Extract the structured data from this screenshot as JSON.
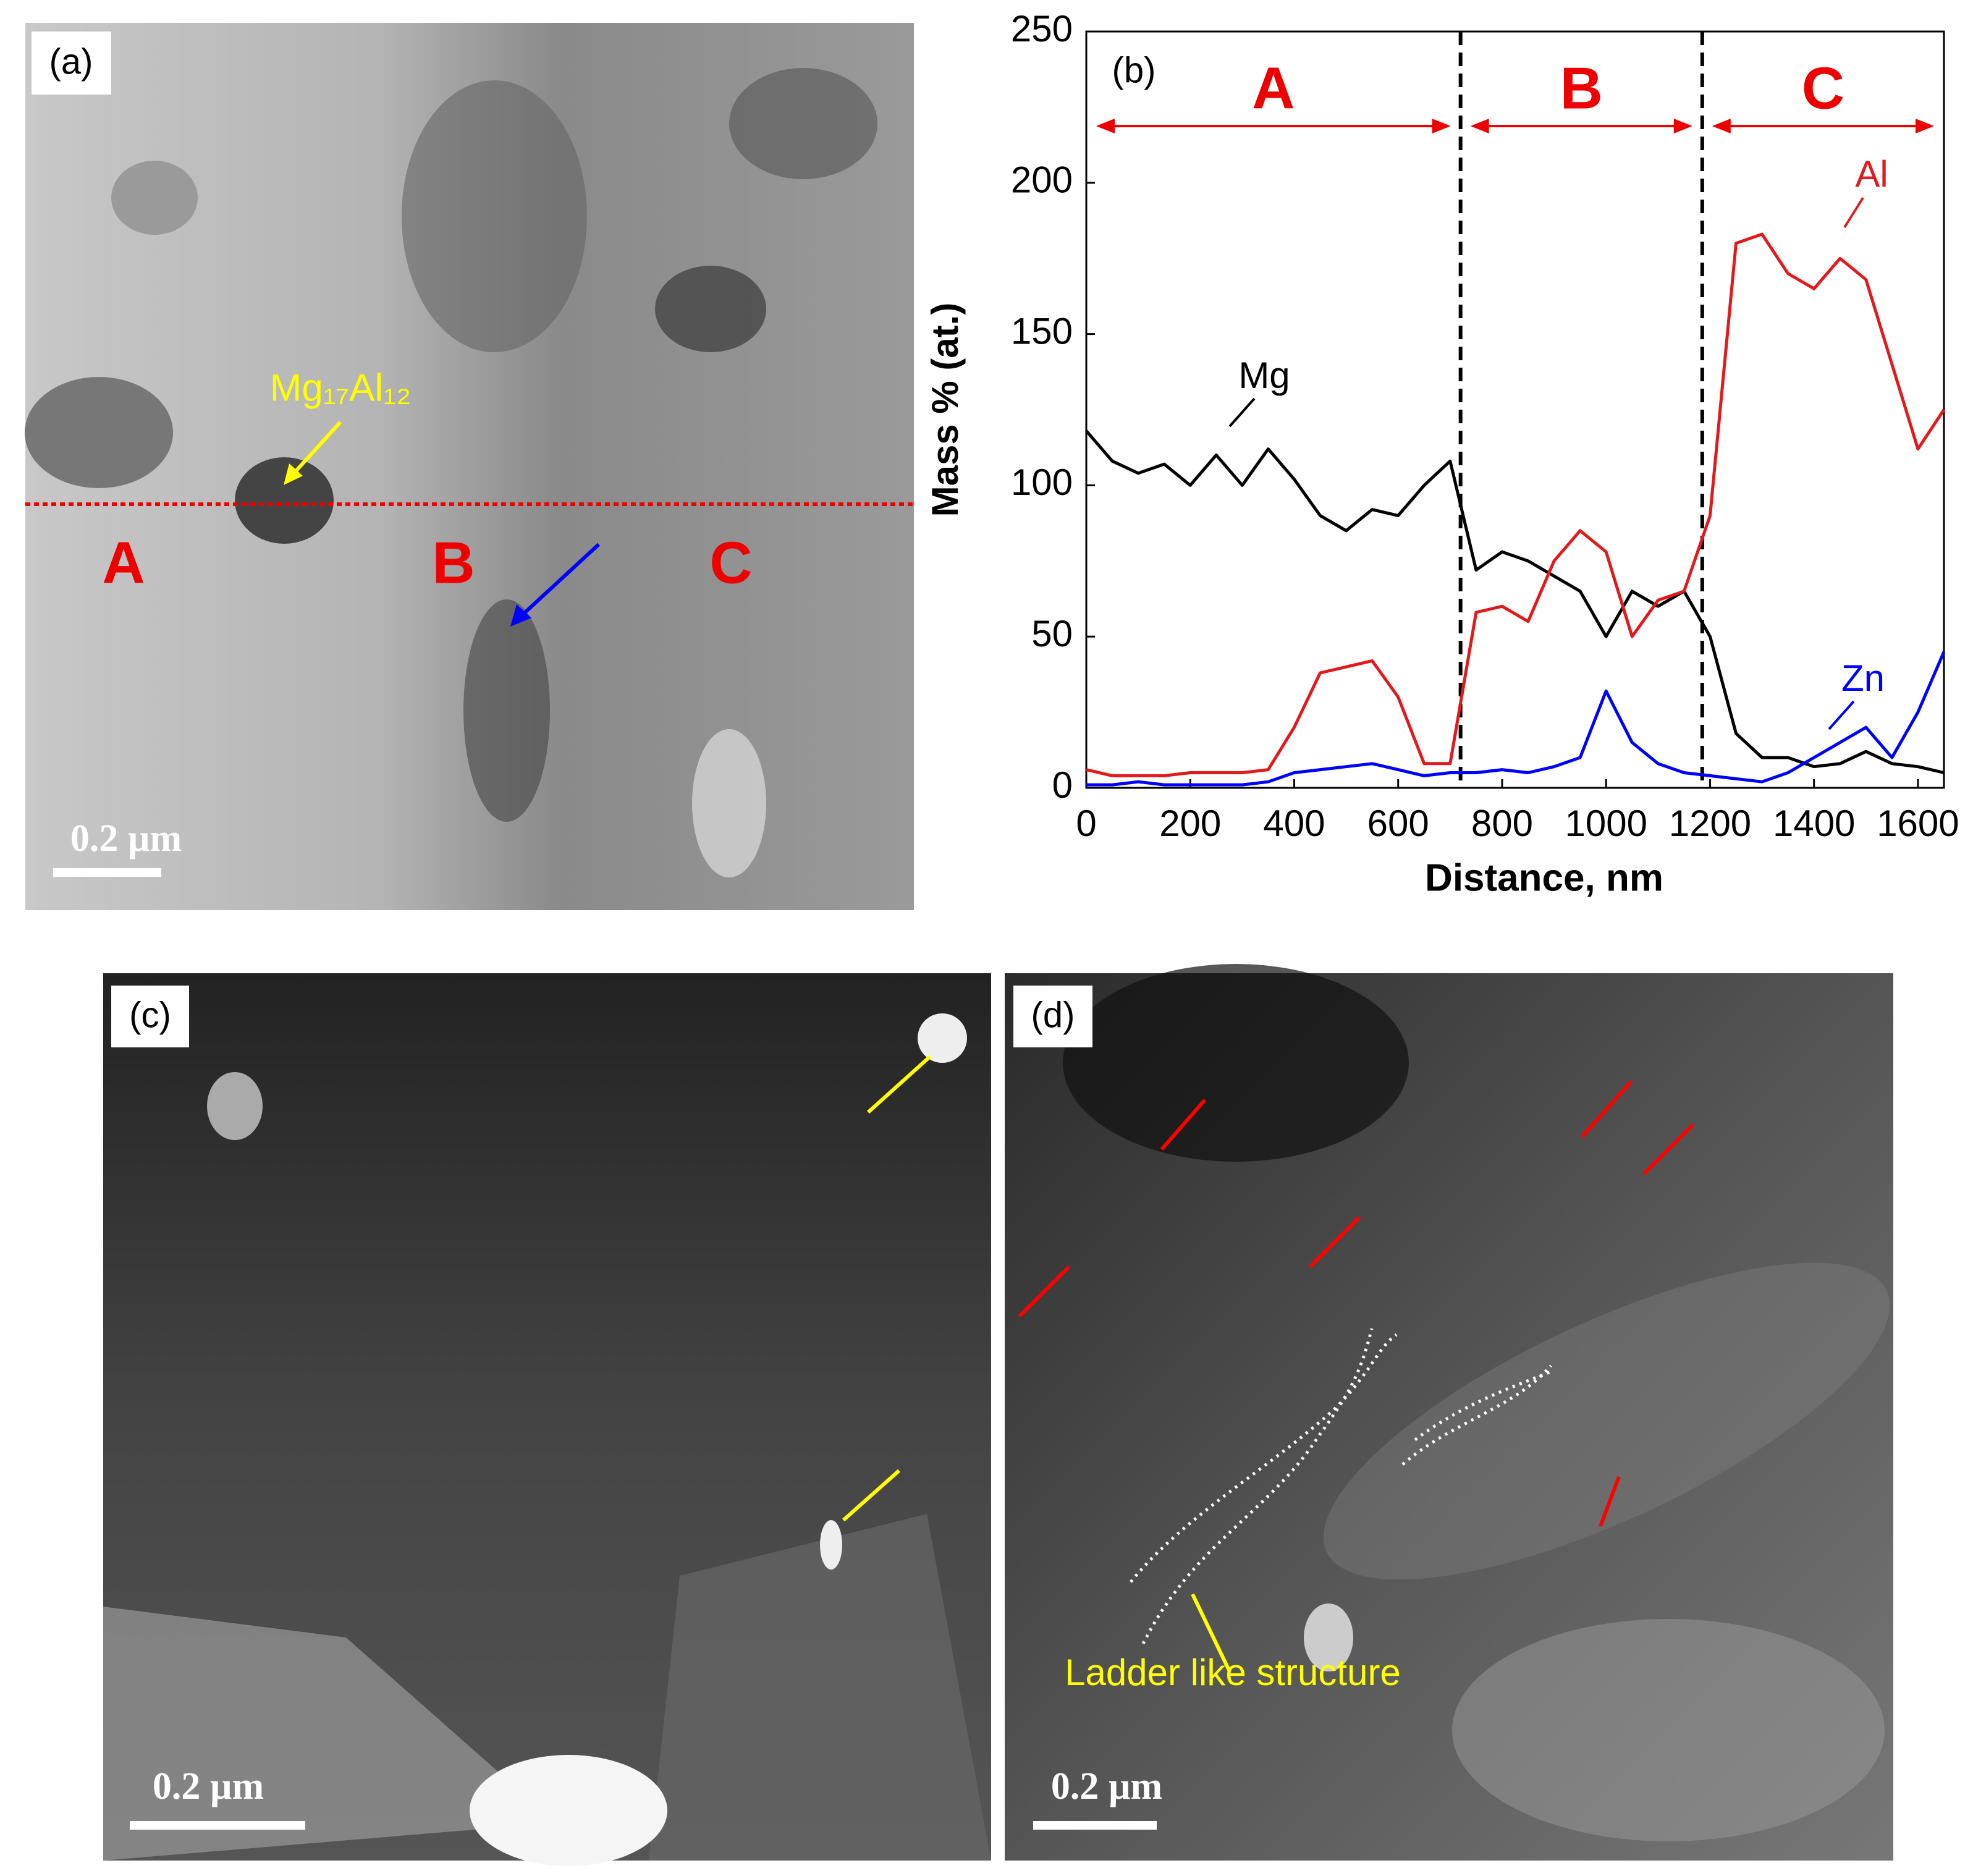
{
  "panels": {
    "a": {
      "label": "(a)",
      "phase": "Mg₁₇Al₁₂",
      "zones": [
        "A",
        "B",
        "C"
      ],
      "scale": "0.2 µm"
    },
    "c": {
      "label": "(c)",
      "scale": "0.2 µm"
    },
    "d": {
      "label": "(d)",
      "annotation": "Ladder like structure",
      "scale": "0.2 µm"
    }
  },
  "chart_data": {
    "type": "line",
    "panel_label": "(b)",
    "x_label": "Distance, nm",
    "y_label": "Mass % (at.)",
    "xlim": [
      0,
      1650
    ],
    "ylim": [
      0,
      250
    ],
    "xticks": [
      0,
      200,
      400,
      600,
      800,
      1000,
      1200,
      1400,
      1600
    ],
    "yticks": [
      0,
      50,
      100,
      150,
      200,
      250
    ],
    "zones": [
      "A",
      "B",
      "C"
    ],
    "boundaries": [
      720,
      1185
    ],
    "x": [
      0,
      50,
      100,
      150,
      200,
      250,
      300,
      350,
      400,
      450,
      500,
      550,
      600,
      650,
      700,
      750,
      800,
      850,
      900,
      950,
      1000,
      1050,
      1100,
      1150,
      1200,
      1250,
      1300,
      1350,
      1400,
      1450,
      1500,
      1550,
      1600,
      1650
    ],
    "series": [
      {
        "name": "Mg",
        "color": "#000000",
        "values": [
          118,
          108,
          104,
          107,
          100,
          110,
          100,
          112,
          102,
          90,
          85,
          92,
          90,
          100,
          108,
          72,
          78,
          75,
          70,
          65,
          50,
          65,
          60,
          65,
          50,
          18,
          10,
          10,
          7,
          8,
          12,
          8,
          7,
          5
        ]
      },
      {
        "name": "Al",
        "color": "#e31a1c",
        "values": [
          6,
          4,
          4,
          4,
          5,
          5,
          5,
          6,
          20,
          38,
          40,
          42,
          30,
          8,
          8,
          58,
          60,
          55,
          75,
          85,
          78,
          50,
          62,
          65,
          90,
          180,
          183,
          170,
          165,
          175,
          168,
          140,
          112,
          125
        ]
      },
      {
        "name": "Zn",
        "color": "#0000ff",
        "values": [
          1,
          1,
          2,
          1,
          1,
          1,
          1,
          2,
          5,
          6,
          7,
          8,
          6,
          4,
          5,
          5,
          6,
          5,
          7,
          10,
          32,
          15,
          8,
          5,
          4,
          3,
          2,
          5,
          10,
          15,
          20,
          10,
          25,
          45
        ]
      }
    ]
  }
}
